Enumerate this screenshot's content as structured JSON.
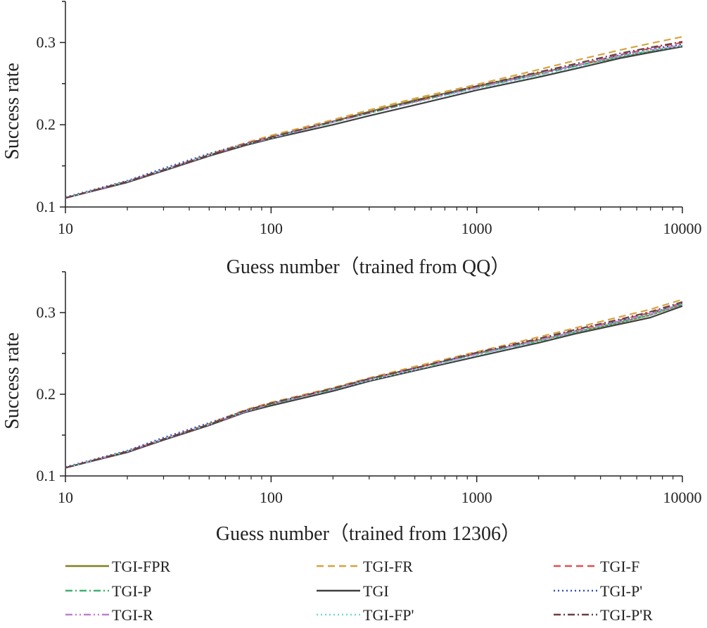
{
  "chart_data": [
    {
      "type": "line",
      "title": "",
      "xlabel": "Guess number（trained from QQ）",
      "ylabel": "Success rate",
      "xscale": "log",
      "xlim": [
        10,
        10000
      ],
      "ylim": [
        0.1,
        0.35
      ],
      "xticks": [
        10,
        100,
        1000,
        10000
      ],
      "xtick_labels": [
        "10",
        "100",
        "1000",
        "10000"
      ],
      "yticks": [
        0.1,
        0.2,
        0.3
      ],
      "ytick_labels": [
        "0.1",
        "0.2",
        "0.3"
      ],
      "x": [
        10,
        20,
        30,
        50,
        75,
        100,
        200,
        300,
        500,
        1000,
        2000,
        3000,
        5000,
        7000,
        10000
      ],
      "series": [
        {
          "name": "TGI-FPR",
          "values": [
            0.111,
            0.131,
            0.145,
            0.163,
            0.176,
            0.184,
            0.204,
            0.216,
            0.23,
            0.247,
            0.263,
            0.272,
            0.282,
            0.289,
            0.295
          ]
        },
        {
          "name": "TGI-FR",
          "values": [
            0.111,
            0.131,
            0.145,
            0.164,
            0.178,
            0.187,
            0.206,
            0.218,
            0.232,
            0.249,
            0.267,
            0.278,
            0.291,
            0.299,
            0.307
          ]
        },
        {
          "name": "TGI-F",
          "values": [
            0.111,
            0.131,
            0.145,
            0.163,
            0.177,
            0.185,
            0.204,
            0.215,
            0.228,
            0.246,
            0.262,
            0.272,
            0.285,
            0.293,
            0.3
          ]
        },
        {
          "name": "TGI-P",
          "values": [
            0.111,
            0.131,
            0.145,
            0.163,
            0.176,
            0.184,
            0.203,
            0.214,
            0.228,
            0.245,
            0.261,
            0.271,
            0.283,
            0.29,
            0.296
          ]
        },
        {
          "name": "TGI",
          "values": [
            0.111,
            0.13,
            0.144,
            0.162,
            0.175,
            0.183,
            0.2,
            0.211,
            0.224,
            0.242,
            0.258,
            0.268,
            0.281,
            0.288,
            0.295
          ]
        },
        {
          "name": "TGI-P'",
          "values": [
            0.112,
            0.132,
            0.147,
            0.165,
            0.177,
            0.185,
            0.204,
            0.215,
            0.229,
            0.246,
            0.262,
            0.272,
            0.285,
            0.292,
            0.298
          ]
        },
        {
          "name": "TGI-R",
          "values": [
            0.111,
            0.131,
            0.145,
            0.163,
            0.176,
            0.184,
            0.203,
            0.214,
            0.228,
            0.245,
            0.262,
            0.272,
            0.284,
            0.291,
            0.297
          ]
        },
        {
          "name": "TGI-FP'",
          "values": [
            0.111,
            0.131,
            0.145,
            0.163,
            0.176,
            0.184,
            0.203,
            0.214,
            0.227,
            0.244,
            0.26,
            0.27,
            0.283,
            0.29,
            0.296
          ]
        },
        {
          "name": "TGI-P'R",
          "values": [
            0.111,
            0.131,
            0.145,
            0.163,
            0.176,
            0.185,
            0.204,
            0.215,
            0.229,
            0.247,
            0.264,
            0.274,
            0.287,
            0.294,
            0.301
          ]
        }
      ]
    },
    {
      "type": "line",
      "title": "",
      "xlabel": "Guess number（trained from 12306）",
      "ylabel": "Success rate",
      "xscale": "log",
      "xlim": [
        10,
        10000
      ],
      "ylim": [
        0.1,
        0.35
      ],
      "xticks": [
        10,
        100,
        1000,
        10000
      ],
      "xtick_labels": [
        "10",
        "100",
        "1000",
        "10000"
      ],
      "yticks": [
        0.1,
        0.2,
        0.3
      ],
      "ytick_labels": [
        "0.1",
        "0.2",
        "0.3"
      ],
      "x": [
        10,
        20,
        30,
        50,
        75,
        100,
        200,
        300,
        500,
        1000,
        2000,
        3000,
        5000,
        7000,
        10000
      ],
      "series": [
        {
          "name": "TGI-FPR",
          "values": [
            0.11,
            0.13,
            0.145,
            0.163,
            0.179,
            0.188,
            0.207,
            0.219,
            0.232,
            0.25,
            0.266,
            0.276,
            0.288,
            0.297,
            0.31
          ]
        },
        {
          "name": "TGI-FR",
          "values": [
            0.11,
            0.13,
            0.145,
            0.164,
            0.181,
            0.19,
            0.208,
            0.22,
            0.234,
            0.252,
            0.27,
            0.281,
            0.295,
            0.304,
            0.316
          ]
        },
        {
          "name": "TGI-F",
          "values": [
            0.11,
            0.13,
            0.145,
            0.163,
            0.18,
            0.189,
            0.207,
            0.219,
            0.232,
            0.25,
            0.267,
            0.278,
            0.291,
            0.3,
            0.312
          ]
        },
        {
          "name": "TGI-P",
          "values": [
            0.11,
            0.13,
            0.145,
            0.163,
            0.179,
            0.188,
            0.206,
            0.218,
            0.231,
            0.249,
            0.265,
            0.276,
            0.289,
            0.298,
            0.311
          ]
        },
        {
          "name": "TGI",
          "values": [
            0.11,
            0.129,
            0.144,
            0.162,
            0.178,
            0.186,
            0.204,
            0.216,
            0.229,
            0.246,
            0.263,
            0.274,
            0.286,
            0.294,
            0.308
          ]
        },
        {
          "name": "TGI-P'",
          "values": [
            0.111,
            0.131,
            0.147,
            0.165,
            0.18,
            0.189,
            0.207,
            0.219,
            0.232,
            0.25,
            0.266,
            0.277,
            0.29,
            0.299,
            0.311
          ]
        },
        {
          "name": "TGI-R",
          "values": [
            0.11,
            0.13,
            0.145,
            0.163,
            0.179,
            0.188,
            0.206,
            0.218,
            0.231,
            0.249,
            0.266,
            0.277,
            0.29,
            0.298,
            0.311
          ]
        },
        {
          "name": "TGI-FP'",
          "values": [
            0.11,
            0.13,
            0.145,
            0.163,
            0.179,
            0.188,
            0.206,
            0.217,
            0.23,
            0.248,
            0.265,
            0.276,
            0.288,
            0.297,
            0.31
          ]
        },
        {
          "name": "TGI-P'R",
          "values": [
            0.11,
            0.13,
            0.145,
            0.163,
            0.18,
            0.189,
            0.207,
            0.219,
            0.232,
            0.251,
            0.268,
            0.279,
            0.292,
            0.301,
            0.313
          ]
        }
      ]
    }
  ],
  "legend": {
    "placement": "bottom",
    "items": [
      {
        "label": "TGI-FPR",
        "color": "#808020",
        "dash": "solid"
      },
      {
        "label": "TGI-FR",
        "color": "#d4a440",
        "dash": "dash"
      },
      {
        "label": "TGI-F",
        "color": "#e05050",
        "dash": "dash"
      },
      {
        "label": "TGI-P",
        "color": "#40b070",
        "dash": "dashdot"
      },
      {
        "label": "TGI",
        "color": "#404040",
        "dash": "solid"
      },
      {
        "label": "TGI-P'",
        "color": "#3050c0",
        "dash": "dot"
      },
      {
        "label": "TGI-R",
        "color": "#c080d0",
        "dash": "dashdotdot"
      },
      {
        "label": "TGI-FP'",
        "color": "#70d8d0",
        "dash": "dot"
      },
      {
        "label": "TGI-P'R",
        "color": "#6b3f3f",
        "dash": "dashdot"
      }
    ]
  }
}
